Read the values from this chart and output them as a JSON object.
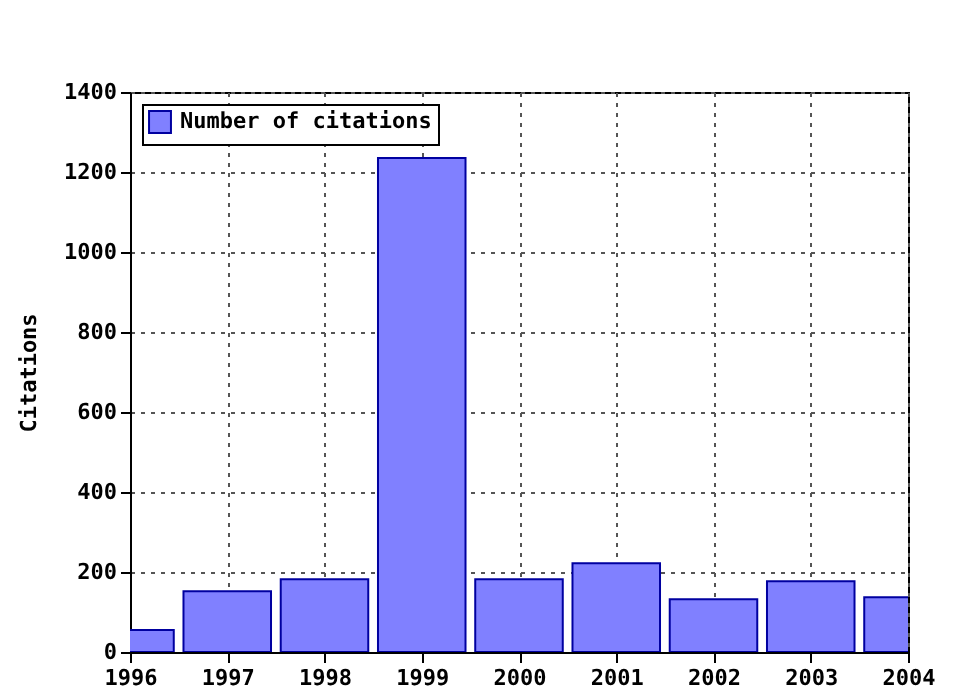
{
  "chart_data": {
    "type": "bar",
    "ylabel": "Citations",
    "x": [
      1996,
      1997,
      1998,
      1999,
      2000,
      2001,
      2002,
      2003,
      2004
    ],
    "series": [
      {
        "name": "Number of citations",
        "color": "#8080ff",
        "values": [
          55,
          152,
          182,
          1235,
          182,
          222,
          132,
          177,
          137
        ]
      }
    ],
    "xlim": [
      1996,
      2004
    ],
    "xticks": [
      1996,
      1997,
      1998,
      1999,
      2000,
      2001,
      2002,
      2003,
      2004
    ],
    "ylim": [
      0,
      1400
    ],
    "yticks": [
      0,
      200,
      400,
      600,
      800,
      1000,
      1200,
      1400
    ],
    "grid": true,
    "legend": "top left"
  }
}
